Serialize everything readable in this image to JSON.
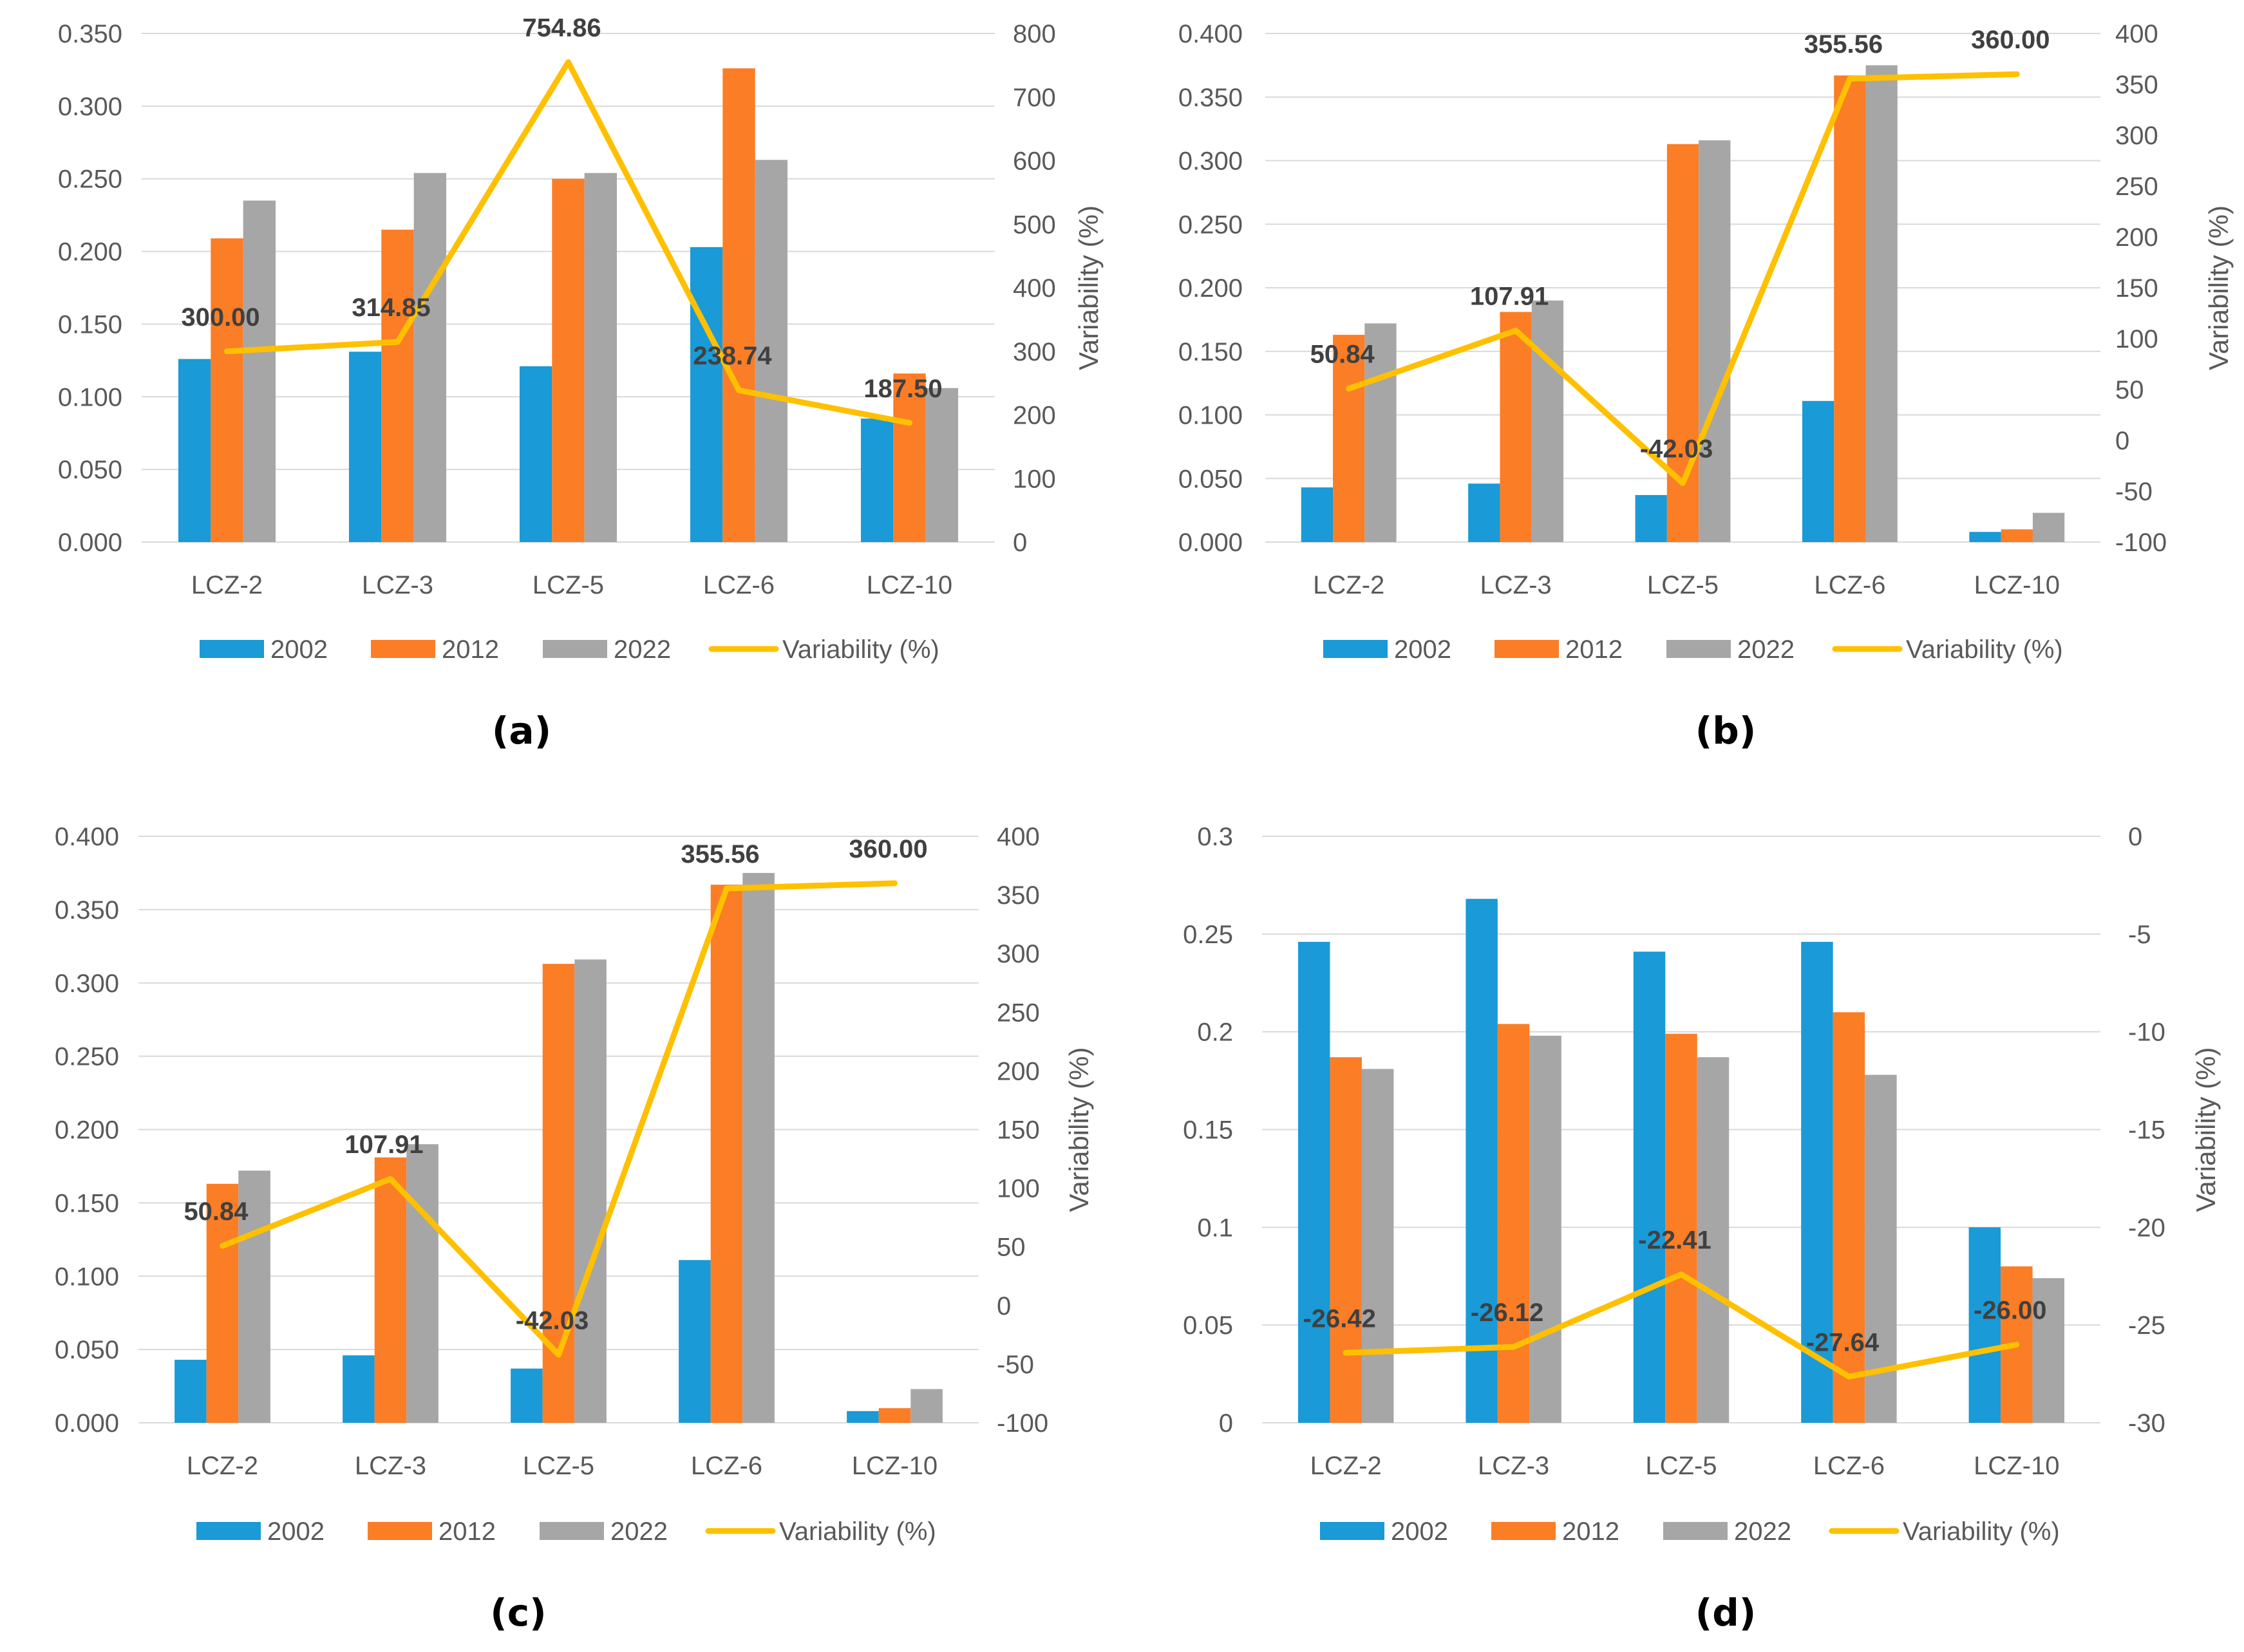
{
  "colors": {
    "s2002": "#1a9ad6",
    "s2012": "#fb7d26",
    "s2022": "#a6a6a6",
    "variability": "#ffc000",
    "grid": "#d9d9d9",
    "tick": "#595959"
  },
  "legend": [
    "2002",
    "2012",
    "2022",
    "Variability (%)"
  ],
  "chart_data": [
    {
      "type": "bar+line",
      "panel": "(a)",
      "categories": [
        "LCZ-2",
        "LCZ-3",
        "LCZ-5",
        "LCZ-6",
        "LCZ-10"
      ],
      "series": [
        {
          "name": "2002",
          "values": [
            0.126,
            0.131,
            0.121,
            0.203,
            0.085
          ]
        },
        {
          "name": "2012",
          "values": [
            0.209,
            0.215,
            0.25,
            0.326,
            0.116
          ]
        },
        {
          "name": "2022",
          "values": [
            0.235,
            0.254,
            0.254,
            0.263,
            0.106
          ]
        }
      ],
      "line": {
        "name": "Variability (%)",
        "values": [
          300.0,
          314.85,
          754.86,
          238.74,
          187.5
        ],
        "labels": [
          "300.00",
          "314.85",
          "754.86",
          "238.74",
          "187.50"
        ]
      },
      "ylim": [
        0,
        0.35
      ],
      "yticks": [
        "0.000",
        "0.050",
        "0.100",
        "0.150",
        "0.200",
        "0.250",
        "0.300",
        "0.350"
      ],
      "y2lim": [
        0,
        800
      ],
      "y2ticks": [
        "0",
        "100",
        "200",
        "300",
        "400",
        "500",
        "600",
        "700",
        "800"
      ],
      "y2label": "Variability (%)"
    },
    {
      "type": "bar+line",
      "panel": "(b)",
      "categories": [
        "LCZ-2",
        "LCZ-3",
        "LCZ-5",
        "LCZ-6",
        "LCZ-10"
      ],
      "series": [
        {
          "name": "2002",
          "values": [
            0.043,
            0.046,
            0.037,
            0.111,
            0.008
          ]
        },
        {
          "name": "2012",
          "values": [
            0.163,
            0.181,
            0.313,
            0.367,
            0.01
          ]
        },
        {
          "name": "2022",
          "values": [
            0.172,
            0.19,
            0.316,
            0.375,
            0.023
          ]
        }
      ],
      "line": {
        "name": "Variability (%)",
        "values": [
          50.84,
          107.91,
          -42.03,
          355.56,
          360.0
        ],
        "labels": [
          "50.84",
          "107.91",
          "-42.03",
          "355.56",
          "360.00"
        ]
      },
      "ylim": [
        0,
        0.4
      ],
      "yticks": [
        "0.000",
        "0.050",
        "0.100",
        "0.150",
        "0.200",
        "0.250",
        "0.300",
        "0.350",
        "0.400"
      ],
      "y2lim": [
        -100,
        400
      ],
      "y2ticks": [
        "-100",
        "-50",
        "0",
        "50",
        "100",
        "150",
        "200",
        "250",
        "300",
        "350",
        "400"
      ],
      "y2label": "Variability (%)"
    },
    {
      "type": "bar+line",
      "panel": "(c)",
      "categories": [
        "LCZ-2",
        "LCZ-3",
        "LCZ-5",
        "LCZ-6",
        "LCZ-10"
      ],
      "series": [
        {
          "name": "2002",
          "values": [
            0.043,
            0.046,
            0.037,
            0.111,
            0.008
          ]
        },
        {
          "name": "2012",
          "values": [
            0.163,
            0.181,
            0.313,
            0.367,
            0.01
          ]
        },
        {
          "name": "2022",
          "values": [
            0.172,
            0.19,
            0.316,
            0.375,
            0.023
          ]
        }
      ],
      "line": {
        "name": "Variability (%)",
        "values": [
          50.84,
          107.91,
          -42.03,
          355.56,
          360.0
        ],
        "labels": [
          "50.84",
          "107.91",
          "-42.03",
          "355.56",
          "360.00"
        ]
      },
      "ylim": [
        0,
        0.4
      ],
      "yticks": [
        "0.000",
        "0.050",
        "0.100",
        "0.150",
        "0.200",
        "0.250",
        "0.300",
        "0.350",
        "0.400"
      ],
      "y2lim": [
        -100,
        400
      ],
      "y2ticks": [
        "-100",
        "-50",
        "0",
        "50",
        "100",
        "150",
        "200",
        "250",
        "300",
        "350",
        "400"
      ],
      "y2label": "Variability (%)"
    },
    {
      "type": "bar+line",
      "panel": "(d)",
      "categories": [
        "LCZ-2",
        "LCZ-3",
        "LCZ-5",
        "LCZ-6",
        "LCZ-10"
      ],
      "series": [
        {
          "name": "2002",
          "values": [
            0.246,
            0.268,
            0.241,
            0.246,
            0.1
          ]
        },
        {
          "name": "2012",
          "values": [
            0.187,
            0.204,
            0.199,
            0.21,
            0.08
          ]
        },
        {
          "name": "2022",
          "values": [
            0.181,
            0.198,
            0.187,
            0.178,
            0.074
          ]
        }
      ],
      "line": {
        "name": "Variability (%)",
        "values": [
          -26.42,
          -26.12,
          -22.41,
          -27.64,
          -26.0
        ],
        "labels": [
          "-26.42",
          "-26.12",
          "-22.41",
          "-27.64",
          "-26.00"
        ]
      },
      "ylim": [
        0,
        0.3
      ],
      "yticks": [
        "0",
        "0.05",
        "0.1",
        "0.15",
        "0.2",
        "0.25",
        "0.3"
      ],
      "y2lim": [
        -30,
        0
      ],
      "y2ticks": [
        "-30",
        "-25",
        "-20",
        "-15",
        "-10",
        "-5",
        "0"
      ],
      "y2label": "Variability (%)"
    }
  ]
}
